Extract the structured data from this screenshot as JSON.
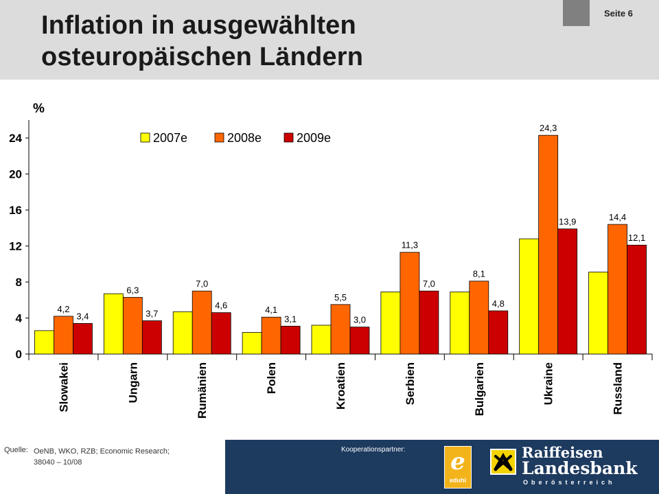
{
  "header": {
    "title_line1": "Inflation in ausgewählten",
    "title_line2": "osteuropäischen Ländern",
    "page_label": "Seite 6"
  },
  "footer": {
    "source_label": "Quelle:",
    "source_line1": "OeNB, WKO, RZB; Economic Research;",
    "source_line2": "38040 – 10/08",
    "partner_label": "Kooperationspartner:",
    "eduhi_letter": "e",
    "eduhi_text": "eduhi",
    "bank_line1": "Raiffeisen",
    "bank_line2": "Landesbank",
    "bank_line3": "Oberösterreich"
  },
  "colors": {
    "2007e": "#ffff00",
    "2008e": "#ff6600",
    "2009e": "#cc0000"
  },
  "chart_data": {
    "type": "bar",
    "title": "Inflation in ausgewählten osteuropäischen Ländern",
    "ylabel": "%",
    "ylim": [
      0,
      26
    ],
    "yticks": [
      0,
      4,
      8,
      12,
      16,
      20,
      24
    ],
    "legend_position": "top",
    "grid": false,
    "categories": [
      "Slowakei",
      "Ungarn",
      "Rumänien",
      "Polen",
      "Kroatien",
      "Serbien",
      "Bulgarien",
      "Ukraine",
      "Russland"
    ],
    "series": [
      {
        "name": "2007e",
        "values": [
          2.6,
          6.7,
          4.7,
          2.4,
          3.2,
          6.9,
          6.9,
          12.8,
          9.1
        ],
        "labels": [
          "",
          "",
          "",
          "",
          "",
          "",
          "",
          "",
          ""
        ]
      },
      {
        "name": "2008e",
        "values": [
          4.2,
          6.3,
          7.0,
          4.1,
          5.5,
          11.3,
          8.1,
          24.3,
          14.4
        ],
        "labels": [
          "4,2",
          "6,3",
          "7,0",
          "4,1",
          "5,5",
          "11,3",
          "8,1",
          "24,3",
          "14,4"
        ]
      },
      {
        "name": "2009e",
        "values": [
          3.4,
          3.7,
          4.6,
          3.1,
          3.0,
          7.0,
          4.8,
          13.9,
          12.1
        ],
        "labels": [
          "3,4",
          "3,7",
          "4,6",
          "3,1",
          "3,0",
          "7,0",
          "4,8",
          "13,9",
          "12,1"
        ]
      }
    ]
  }
}
